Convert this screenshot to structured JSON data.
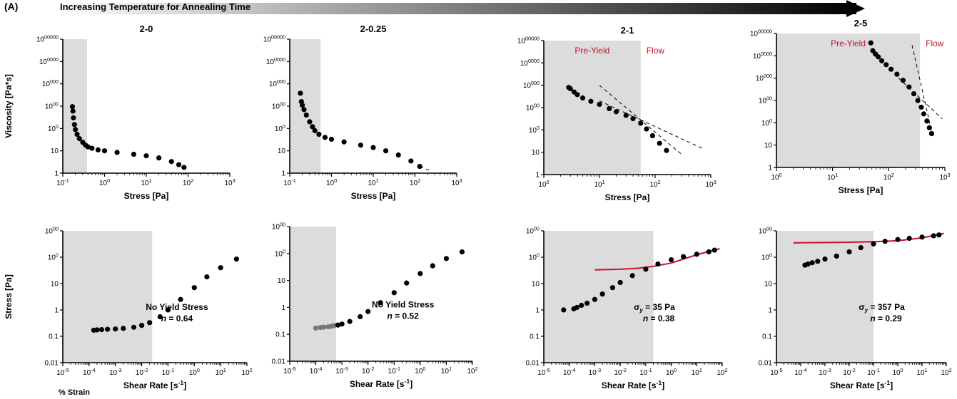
{
  "header": {
    "panel_label": "(A)",
    "caption": "Increasing Temperature for Annealing Time"
  },
  "footer": {
    "strain_label": "% Strain"
  },
  "colors": {
    "shade": "#dcdcdc",
    "marker": "#000000",
    "gray_marker": "#777777",
    "fit": "#c8102e",
    "arrow_start": "#ffffff",
    "arrow_end": "#000000"
  },
  "chart_data": [
    {
      "type": "scatter",
      "title": "2-0",
      "xlabel": "Stress [Pa]",
      "ylabel": "Viscosity [Pa*s]",
      "x_log": true,
      "y_log": true,
      "xlim": [
        0.1,
        1000
      ],
      "ylim": [
        1,
        1000000
      ],
      "x_ticks": [
        "10-1",
        "100",
        "101",
        "102",
        "103"
      ],
      "y_ticks": [
        "1",
        "10",
        "100",
        "1000",
        "10000",
        "100000",
        "1000000"
      ],
      "shaded_region": [
        0.1,
        0.38
      ],
      "series": [
        {
          "points": [
            [
              0.17,
              950
            ],
            [
              0.175,
              600
            ],
            [
              0.18,
              300
            ],
            [
              0.19,
              150
            ],
            [
              0.2,
              90
            ],
            [
              0.22,
              55
            ],
            [
              0.25,
              35
            ],
            [
              0.3,
              24
            ],
            [
              0.35,
              18
            ],
            [
              0.4,
              15
            ],
            [
              0.5,
              13
            ],
            [
              0.7,
              11
            ],
            [
              1,
              10
            ],
            [
              2,
              8.5
            ],
            [
              5,
              7
            ],
            [
              10,
              6
            ],
            [
              20,
              4.8
            ],
            [
              40,
              3.3
            ],
            [
              60,
              2.4
            ],
            [
              80,
              1.8
            ]
          ]
        }
      ],
      "annotations": []
    },
    {
      "type": "scatter",
      "title": "2-0.25",
      "xlabel": "Stress [Pa]",
      "ylabel": "",
      "x_log": true,
      "y_log": true,
      "xlim": [
        0.1,
        1000
      ],
      "ylim": [
        1,
        1000000
      ],
      "x_ticks": [
        "10-1",
        "100",
        "101",
        "102",
        "103"
      ],
      "y_ticks": [
        "1",
        "10",
        "100",
        "1000",
        "10000",
        "100000",
        "1000000"
      ],
      "shaded_region": [
        0.1,
        0.55
      ],
      "series": [
        {
          "points": [
            [
              0.18,
              3800
            ],
            [
              0.19,
              1600
            ],
            [
              0.2,
              1100
            ],
            [
              0.22,
              700
            ],
            [
              0.25,
              400
            ],
            [
              0.3,
              200
            ],
            [
              0.35,
              120
            ],
            [
              0.4,
              80
            ],
            [
              0.5,
              55
            ],
            [
              0.7,
              40
            ],
            [
              1,
              33
            ],
            [
              2,
              25
            ],
            [
              5,
              18
            ],
            [
              10,
              14
            ],
            [
              20,
              10
            ],
            [
              40,
              6.5
            ],
            [
              80,
              3.5
            ],
            [
              130,
              2
            ]
          ]
        }
      ],
      "fit_lines": [
        {
          "style": "dashed",
          "points": [
            [
              130,
              2
            ],
            [
              250,
              1.2
            ]
          ]
        }
      ],
      "annotations": []
    },
    {
      "type": "scatter",
      "title": "2-1",
      "xlabel": "Stress [Pa]",
      "ylabel": "",
      "x_log": true,
      "y_log": true,
      "xlim": [
        1,
        1000
      ],
      "ylim": [
        1,
        1000000
      ],
      "x_ticks": [
        "100",
        "101",
        "102",
        "103"
      ],
      "y_ticks": [
        "1",
        "10",
        "100",
        "1000",
        "10000",
        "100000",
        "1000000"
      ],
      "shaded_region": [
        1,
        55
      ],
      "series": [
        {
          "points": [
            [
              2.8,
              8000
            ],
            [
              3,
              7000
            ],
            [
              3.5,
              5000
            ],
            [
              4,
              3800
            ],
            [
              5,
              2700
            ],
            [
              7,
              1900
            ],
            [
              10,
              1400
            ],
            [
              15,
              900
            ],
            [
              20,
              650
            ],
            [
              30,
              450
            ],
            [
              40,
              320
            ],
            [
              55,
              200
            ],
            [
              70,
              110
            ],
            [
              90,
              55
            ],
            [
              120,
              25
            ],
            [
              160,
              12
            ]
          ]
        }
      ],
      "fit_lines": [
        {
          "style": "dashed",
          "points": [
            [
              10,
              10000
            ],
            [
              300,
              8
            ]
          ]
        },
        {
          "style": "dashed",
          "points": [
            [
              10,
              2000
            ],
            [
              700,
              15
            ]
          ]
        }
      ],
      "annotations": [
        "Pre-Yield",
        "Flow"
      ]
    },
    {
      "type": "scatter",
      "title": "2-5",
      "xlabel": "Stress [Pa]",
      "ylabel": "",
      "x_log": true,
      "y_log": true,
      "xlim": [
        1,
        1000
      ],
      "ylim": [
        1,
        1000000
      ],
      "x_ticks": [
        "100",
        "101",
        "102",
        "103"
      ],
      "y_ticks": [
        "1",
        "10",
        "100",
        "1000",
        "10000",
        "100000",
        "1000000"
      ],
      "shaded_region": [
        1,
        360
      ],
      "series": [
        {
          "points": [
            [
              48,
              380000
            ],
            [
              52,
              170000
            ],
            [
              58,
              120000
            ],
            [
              65,
              90000
            ],
            [
              75,
              60000
            ],
            [
              90,
              40000
            ],
            [
              110,
              25000
            ],
            [
              140,
              15000
            ],
            [
              180,
              8000
            ],
            [
              230,
              4000
            ],
            [
              280,
              2000
            ],
            [
              330,
              1000
            ],
            [
              380,
              500
            ],
            [
              420,
              250
            ],
            [
              480,
              120
            ],
            [
              530,
              60
            ],
            [
              580,
              33
            ]
          ]
        }
      ],
      "fit_lines": [
        {
          "style": "dashed",
          "points": [
            [
              260,
              300000
            ],
            [
              620,
              20
            ]
          ]
        },
        {
          "style": "dashed",
          "points": [
            [
              150,
              10000
            ],
            [
              900,
              150
            ]
          ]
        }
      ],
      "annotations": [
        "Pre-Yield",
        "Flow"
      ]
    },
    {
      "type": "scatter",
      "title": "",
      "xlabel": "Shear Rate [s-1]",
      "ylabel": "Stress [Pa]",
      "x_log": true,
      "y_log": true,
      "xlim": [
        1e-05,
        100
      ],
      "ylim": [
        0.01,
        1000
      ],
      "x_ticks": [
        "10-5",
        "10-4",
        "10-3",
        "10-2",
        "10-1",
        "100",
        "101",
        "102"
      ],
      "y_ticks": [
        "0.01",
        "0.1",
        "1",
        "10",
        "100",
        "1000"
      ],
      "shaded_region": [
        1e-05,
        0.025
      ],
      "series": [
        {
          "points": [
            [
              0.00015,
              0.17
            ],
            [
              0.0002,
              0.175
            ],
            [
              0.0003,
              0.18
            ],
            [
              0.0005,
              0.185
            ],
            [
              0.001,
              0.19
            ],
            [
              0.002,
              0.2
            ],
            [
              0.005,
              0.22
            ],
            [
              0.01,
              0.26
            ],
            [
              0.02,
              0.33
            ],
            [
              0.05,
              0.55
            ],
            [
              0.1,
              1
            ],
            [
              0.3,
              2.5
            ],
            [
              1,
              7
            ],
            [
              3,
              18
            ],
            [
              10,
              40
            ],
            [
              40,
              85
            ]
          ]
        }
      ],
      "annotations": [
        "No Yield Stress",
        "n = 0.64"
      ]
    },
    {
      "type": "scatter",
      "title": "",
      "xlabel": "Shear Rate [s-1]",
      "ylabel": "",
      "x_log": true,
      "y_log": true,
      "xlim": [
        1e-05,
        100
      ],
      "ylim": [
        0.01,
        1000
      ],
      "x_ticks": [
        "10-5",
        "10-4",
        "10-3",
        "10-2",
        "10-1",
        "100",
        "101",
        "102"
      ],
      "y_ticks": [
        "0.01",
        "0.1",
        "1",
        "10",
        "100",
        "1000"
      ],
      "shaded_region": [
        1e-05,
        0.0006
      ],
      "series": [
        {
          "marker_color": "gray_marker",
          "points": [
            [
              0.0001,
              0.17
            ],
            [
              0.00015,
              0.18
            ],
            [
              0.0002,
              0.185
            ],
            [
              0.0003,
              0.19
            ],
            [
              0.0004,
              0.2
            ],
            [
              0.0005,
              0.21
            ]
          ]
        },
        {
          "marker_color": "marker",
          "points": [
            [
              0.0007,
              0.22
            ],
            [
              0.001,
              0.24
            ],
            [
              0.002,
              0.3
            ],
            [
              0.005,
              0.45
            ],
            [
              0.01,
              0.7
            ],
            [
              0.03,
              1.5
            ],
            [
              0.1,
              3.5
            ],
            [
              0.3,
              8
            ],
            [
              1,
              18
            ],
            [
              3,
              35
            ],
            [
              10,
              65
            ],
            [
              40,
              115
            ]
          ]
        }
      ],
      "annotations": [
        "No Yield Stress",
        "n = 0.52"
      ]
    },
    {
      "type": "scatter",
      "title": "",
      "xlabel": "Shear Rate [s-1]",
      "ylabel": "",
      "x_log": true,
      "y_log": true,
      "xlim": [
        1e-05,
        100
      ],
      "ylim": [
        0.01,
        1000
      ],
      "x_ticks": [
        "10-5",
        "10-4",
        "10-3",
        "10-2",
        "10-1",
        "100",
        "101",
        "102"
      ],
      "y_ticks": [
        "0.01",
        "0.1",
        "1",
        "10",
        "100",
        "1000"
      ],
      "shaded_region": [
        1e-05,
        0.2
      ],
      "series": [
        {
          "points": [
            [
              6e-05,
              1
            ],
            [
              0.00015,
              1.1
            ],
            [
              0.0002,
              1.25
            ],
            [
              0.0003,
              1.5
            ],
            [
              0.0005,
              1.8
            ],
            [
              0.001,
              2.5
            ],
            [
              0.002,
              4
            ],
            [
              0.005,
              7
            ],
            [
              0.01,
              11
            ],
            [
              0.03,
              20
            ],
            [
              0.1,
              35
            ],
            [
              0.3,
              55
            ],
            [
              1,
              80
            ],
            [
              3,
              105
            ],
            [
              10,
              130
            ],
            [
              30,
              160
            ],
            [
              50,
              185
            ]
          ]
        }
      ],
      "fit_lines": [
        {
          "style": "solid",
          "color": "fit",
          "points": [
            [
              0.001,
              33
            ],
            [
              0.01,
              35
            ],
            [
              0.05,
              38
            ],
            [
              0.2,
              45
            ],
            [
              1,
              60
            ],
            [
              5,
              100
            ],
            [
              20,
              150
            ],
            [
              80,
              210
            ]
          ]
        }
      ],
      "annotations": [
        "σy = 35 Pa",
        "n = 0.38"
      ]
    },
    {
      "type": "scatter",
      "title": "",
      "xlabel": "Shear Rate [s-1]",
      "ylabel": "",
      "x_log": true,
      "y_log": true,
      "xlim": [
        1e-05,
        100
      ],
      "ylim": [
        0.01,
        1000
      ],
      "x_ticks": [
        "10-5",
        "10-4",
        "10-3",
        "10-2",
        "10-1",
        "100",
        "101",
        "102"
      ],
      "y_ticks": [
        "0.01",
        "0.1",
        "1",
        "10",
        "100",
        "1000"
      ],
      "shaded_region": [
        1e-05,
        0.1
      ],
      "series": [
        {
          "points": [
            [
              0.00015,
              50
            ],
            [
              0.0002,
              55
            ],
            [
              0.0003,
              62
            ],
            [
              0.0005,
              70
            ],
            [
              0.001,
              85
            ],
            [
              0.003,
              110
            ],
            [
              0.01,
              160
            ],
            [
              0.03,
              230
            ],
            [
              0.1,
              320
            ],
            [
              0.3,
              400
            ],
            [
              1,
              470
            ],
            [
              3,
              520
            ],
            [
              10,
              580
            ],
            [
              30,
              650
            ],
            [
              50,
              700
            ]
          ]
        }
      ],
      "fit_lines": [
        {
          "style": "solid",
          "color": "fit",
          "points": [
            [
              5e-05,
              350
            ],
            [
              0.001,
              360
            ],
            [
              0.01,
              370
            ],
            [
              0.1,
              385
            ],
            [
              1,
              420
            ],
            [
              10,
              540
            ],
            [
              80,
              800
            ]
          ]
        }
      ],
      "annotations": [
        "σy = 357 Pa",
        "n = 0.29"
      ]
    }
  ]
}
